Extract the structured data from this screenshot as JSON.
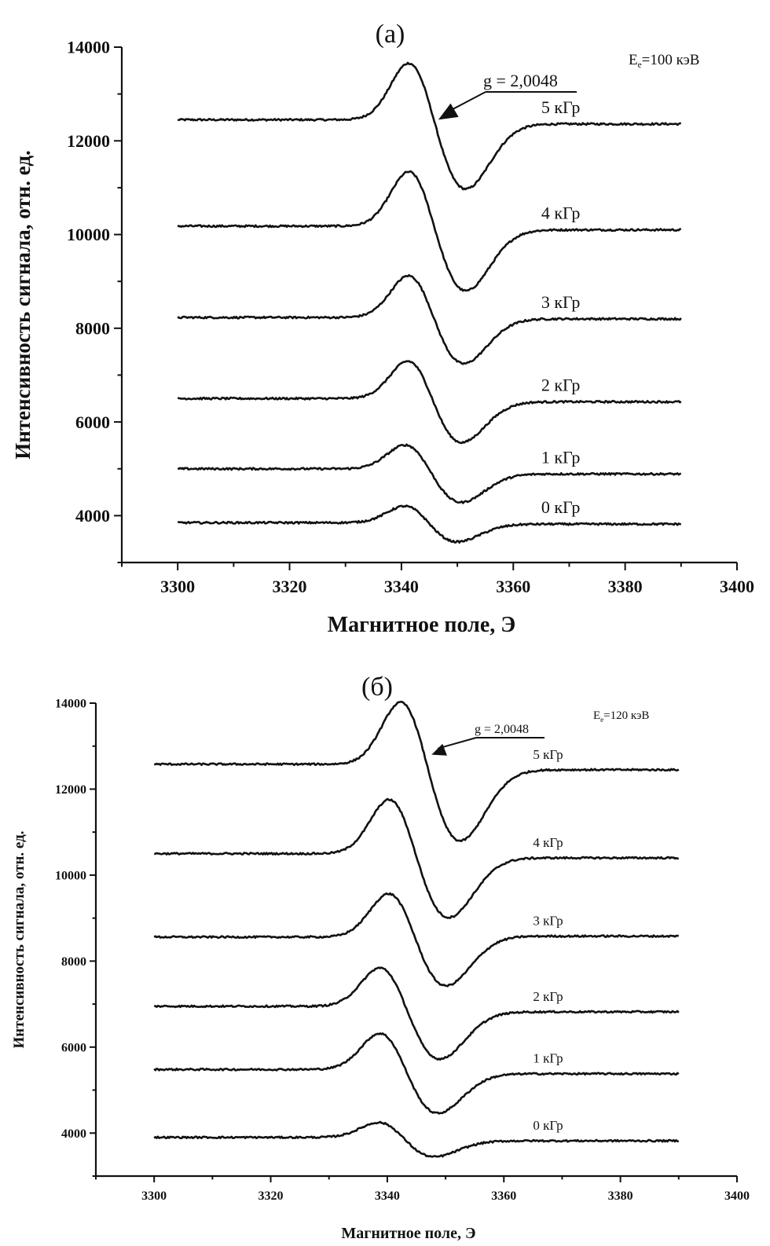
{
  "chart_data": [
    {
      "type": "line",
      "title": "(a)",
      "annotation_energy_main": "E",
      "annotation_energy_sub": "e",
      "annotation_energy_rest": "=100 кэВ",
      "annotation_g": "g = 2,0048",
      "xlabel": "Магнитное поле, Э",
      "ylabel": "Интенсивность сигнала, отн. ед.",
      "xlim": [
        3290,
        3400
      ],
      "ylim": [
        3000,
        14000
      ],
      "x_ticks": [
        "3300",
        "3320",
        "3340",
        "3360",
        "3380",
        "3400"
      ],
      "y_ticks": [
        "4000",
        "6000",
        "8000",
        "10000",
        "12000",
        "14000"
      ],
      "series": [
        {
          "name": "5 кГр",
          "baseline": 12450,
          "peak": 13850,
          "trough": 11000,
          "end": 12360,
          "peak_x": 3342,
          "trough_x": 3351
        },
        {
          "name": "4 кГр",
          "baseline": 10180,
          "peak": 11520,
          "trough": 8820,
          "end": 10100,
          "peak_x": 3342,
          "trough_x": 3351
        },
        {
          "name": "3 кГр",
          "baseline": 8230,
          "peak": 9280,
          "trough": 7220,
          "end": 8200,
          "peak_x": 3342,
          "trough_x": 3350.5
        },
        {
          "name": "2 кГр",
          "baseline": 6500,
          "peak": 7480,
          "trough": 5560,
          "end": 6430,
          "peak_x": 3342,
          "trough_x": 3350
        },
        {
          "name": "1 кГр",
          "baseline": 5000,
          "peak": 5620,
          "trough": 4350,
          "end": 4890,
          "peak_x": 3341.5,
          "trough_x": 3350
        },
        {
          "name": "0 кГр",
          "baseline": 3850,
          "peak": 4300,
          "trough": 3430,
          "end": 3820,
          "peak_x": 3341.5,
          "trough_x": 3349
        }
      ]
    },
    {
      "type": "line",
      "title": "(б)",
      "annotation_energy_main": "E",
      "annotation_energy_sub": "e",
      "annotation_energy_rest": "=120 кэВ",
      "annotation_g": "g = 2,0048",
      "xlabel": "Магнитное поле, Э",
      "ylabel": "Интенсивность сигнала, отн. ед.",
      "xlim": [
        3290,
        3400
      ],
      "ylim": [
        3000,
        14000
      ],
      "x_ticks": [
        "3300",
        "3320",
        "3340",
        "3360",
        "3380",
        "3400"
      ],
      "y_ticks": [
        "4000",
        "6000",
        "8000",
        "10000",
        "12000",
        "14000"
      ],
      "series": [
        {
          "name": "5 кГр",
          "baseline": 12580,
          "peak": 14250,
          "trough": 10850,
          "end": 12450,
          "peak_x": 3343,
          "trough_x": 3352
        },
        {
          "name": "4 кГр",
          "baseline": 10500,
          "peak": 11950,
          "trough": 9050,
          "end": 10400,
          "peak_x": 3341,
          "trough_x": 3350
        },
        {
          "name": "3 кГр",
          "baseline": 8560,
          "peak": 9750,
          "trough": 7350,
          "end": 8580,
          "peak_x": 3341,
          "trough_x": 3349.5
        },
        {
          "name": "2 кГр",
          "baseline": 6950,
          "peak": 8000,
          "trough": 5800,
          "end": 6820,
          "peak_x": 3339.5,
          "trough_x": 3348.5
        },
        {
          "name": "1 кГр",
          "baseline": 5480,
          "peak": 6480,
          "trough": 4500,
          "end": 5380,
          "peak_x": 3339.5,
          "trough_x": 3348
        },
        {
          "name": "0 кГр",
          "baseline": 3900,
          "peak": 4350,
          "trough": 3480,
          "end": 3820,
          "peak_x": 3339.5,
          "trough_x": 3347
        }
      ]
    }
  ]
}
